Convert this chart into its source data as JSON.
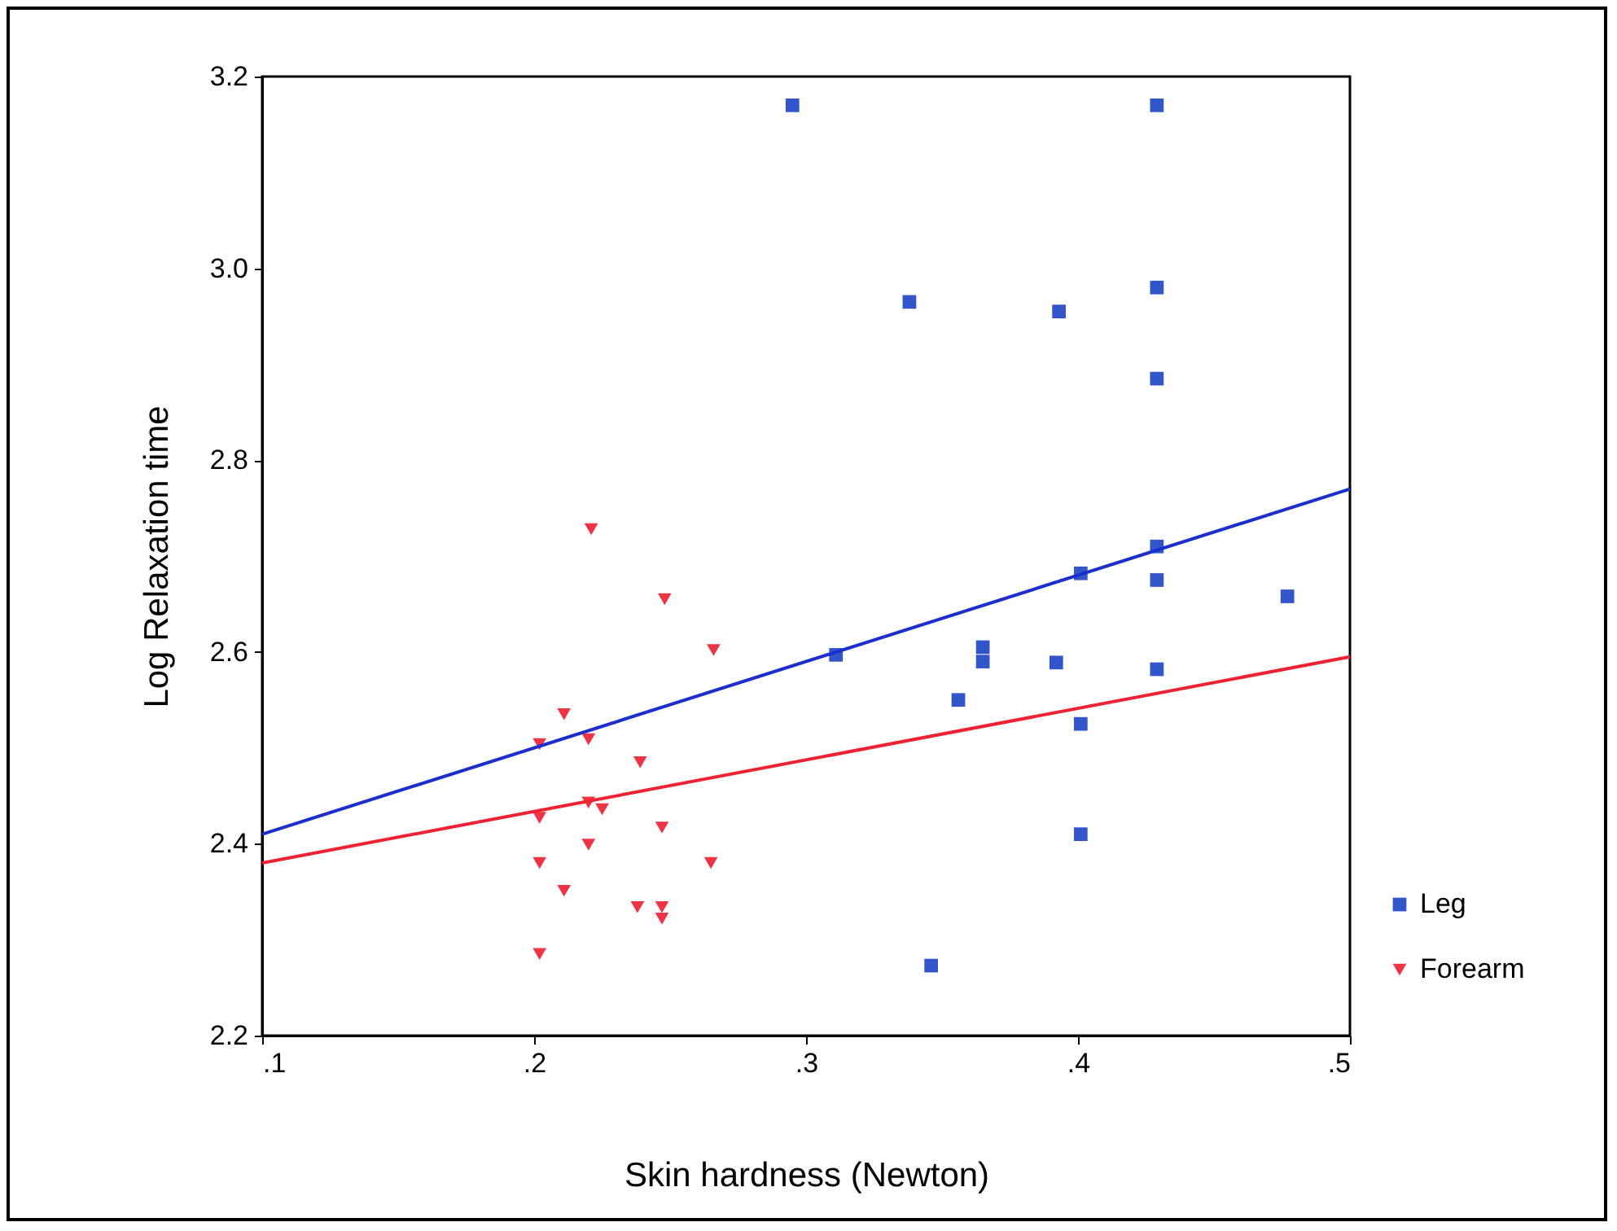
{
  "chart_data": {
    "type": "scatter",
    "xlabel": "Skin hardness (Newton)",
    "ylabel": "Log Relaxation time",
    "xlim": [
      0.1,
      0.5
    ],
    "xticks": [
      {
        "value": 0.1,
        "label": ".1"
      },
      {
        "value": 0.2,
        "label": ".2"
      },
      {
        "value": 0.3,
        "label": ".3"
      },
      {
        "value": 0.4,
        "label": ".4"
      },
      {
        "value": 0.5,
        "label": ".5"
      }
    ],
    "ylim": [
      2.2,
      3.2
    ],
    "yticks": [
      2.2,
      2.4,
      2.6,
      2.8,
      {
        "value": 3,
        "label": "3.0"
      },
      3.2
    ],
    "grid": false,
    "legend": "bottom right",
    "series": [
      {
        "name": "Leg",
        "marker": "square",
        "color": "#3355cc",
        "x": [
          0.295,
          0.429,
          0.338,
          0.393,
          0.429,
          0.429,
          0.429,
          0.429,
          0.429,
          0.401,
          0.401,
          0.401,
          0.311,
          0.365,
          0.365,
          0.392,
          0.356,
          0.346,
          0.477
        ],
        "values": [
          3.17,
          3.17,
          2.965,
          2.955,
          2.98,
          2.885,
          2.71,
          2.675,
          2.582,
          2.682,
          2.525,
          2.41,
          2.597,
          2.605,
          2.59,
          2.589,
          2.55,
          2.273,
          2.658
        ]
      },
      {
        "name": "Forearm",
        "marker": "triangle",
        "color": "#ee3344",
        "x": [
          0.221,
          0.248,
          0.266,
          0.211,
          0.202,
          0.22,
          0.239,
          0.22,
          0.225,
          0.202,
          0.247,
          0.22,
          0.202,
          0.265,
          0.211,
          0.238,
          0.247,
          0.247,
          0.202
        ],
        "values": [
          2.728,
          2.655,
          2.602,
          2.535,
          2.504,
          2.509,
          2.485,
          2.443,
          2.436,
          2.427,
          2.417,
          2.399,
          2.38,
          2.38,
          2.351,
          2.334,
          2.334,
          2.322,
          2.285
        ]
      },
      {
        "type": "line",
        "color": "#1a2fcc",
        "x": [
          0.1,
          0.5
        ],
        "values": [
          2.41,
          2.77
        ]
      },
      {
        "type": "line",
        "color": "#ee2233",
        "x": [
          0.1,
          0.5
        ],
        "values": [
          2.38,
          2.595
        ]
      }
    ]
  }
}
